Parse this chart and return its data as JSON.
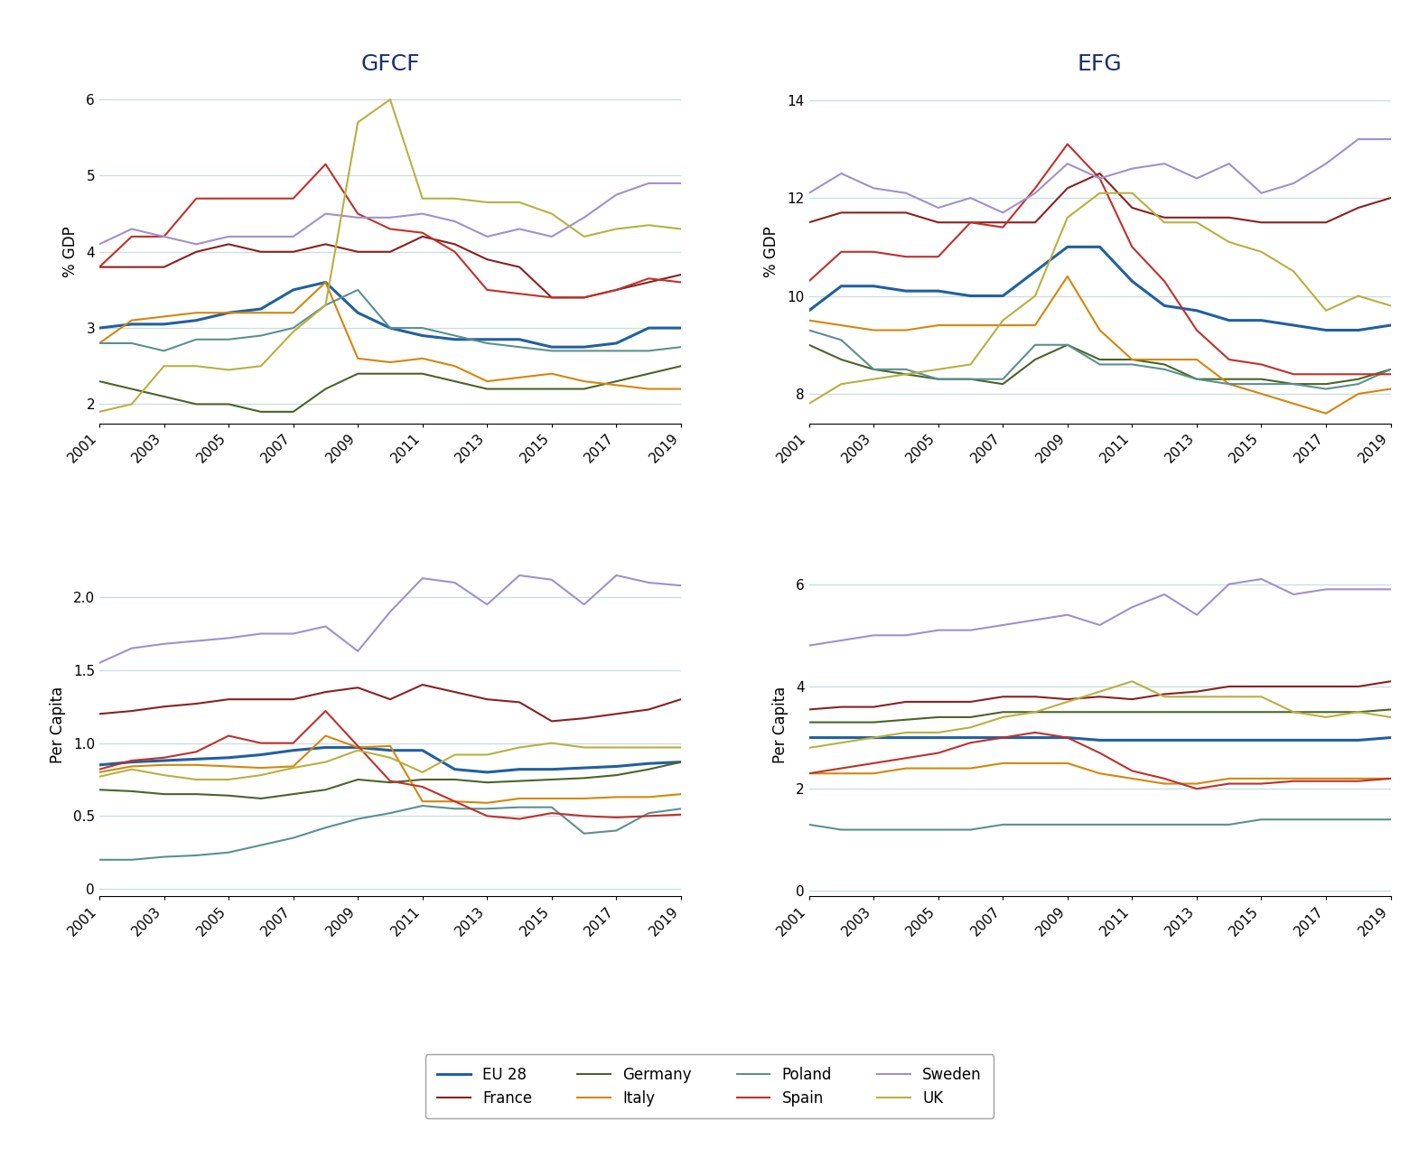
{
  "years": [
    2001,
    2002,
    2003,
    2004,
    2005,
    2006,
    2007,
    2008,
    2009,
    2010,
    2011,
    2012,
    2013,
    2014,
    2015,
    2016,
    2017,
    2018,
    2019
  ],
  "countries": [
    "EU 28",
    "France",
    "Germany",
    "Italy",
    "Poland",
    "Spain",
    "Sweden",
    "UK"
  ],
  "colors": {
    "EU 28": "#2060a0",
    "France": "#8b2020",
    "Germany": "#4a6428",
    "Italy": "#d4860a",
    "Poland": "#5b9090",
    "Spain": "#c0302a",
    "Sweden": "#a090cc",
    "UK": "#b8b040"
  },
  "linewidths": {
    "EU 28": 2.2,
    "France": 1.5,
    "Germany": 1.5,
    "Italy": 1.5,
    "Poland": 1.5,
    "Spain": 1.5,
    "Sweden": 1.5,
    "UK": 1.5
  },
  "gfcf_pct": {
    "EU 28": [
      3.0,
      3.05,
      3.05,
      3.1,
      3.2,
      3.25,
      3.5,
      3.6,
      3.2,
      3.0,
      2.9,
      2.85,
      2.85,
      2.85,
      2.75,
      2.75,
      2.8,
      3.0,
      3.0
    ],
    "France": [
      3.8,
      3.8,
      3.8,
      4.0,
      4.1,
      4.0,
      4.0,
      4.1,
      4.0,
      4.0,
      4.2,
      4.1,
      3.9,
      3.8,
      3.4,
      3.4,
      3.5,
      3.6,
      3.7
    ],
    "Germany": [
      2.3,
      2.2,
      2.1,
      2.0,
      2.0,
      1.9,
      1.9,
      2.2,
      2.4,
      2.4,
      2.4,
      2.3,
      2.2,
      2.2,
      2.2,
      2.2,
      2.3,
      2.4,
      2.5
    ],
    "Italy": [
      2.8,
      3.1,
      3.15,
      3.2,
      3.2,
      3.2,
      3.2,
      3.6,
      2.6,
      2.55,
      2.6,
      2.5,
      2.3,
      2.35,
      2.4,
      2.3,
      2.25,
      2.2,
      2.2
    ],
    "Poland": [
      2.8,
      2.8,
      2.7,
      2.85,
      2.85,
      2.9,
      3.0,
      3.3,
      3.5,
      3.0,
      3.0,
      2.9,
      2.8,
      2.75,
      2.7,
      2.7,
      2.7,
      2.7,
      2.75
    ],
    "Spain": [
      3.8,
      4.2,
      4.2,
      4.7,
      4.7,
      4.7,
      4.7,
      5.15,
      4.5,
      4.3,
      4.25,
      4.0,
      3.5,
      3.45,
      3.4,
      3.4,
      3.5,
      3.65,
      3.6
    ],
    "Sweden": [
      4.1,
      4.3,
      4.2,
      4.1,
      4.2,
      4.2,
      4.2,
      4.5,
      4.45,
      4.45,
      4.5,
      4.4,
      4.2,
      4.3,
      4.2,
      4.45,
      4.75,
      4.9,
      4.9
    ],
    "UK": [
      1.9,
      2.0,
      2.5,
      2.5,
      2.45,
      2.5,
      2.95,
      3.3,
      5.7,
      6.0,
      4.7,
      4.7,
      4.65,
      4.65,
      4.5,
      4.2,
      4.3,
      4.35,
      4.3
    ]
  },
  "efg_pct": {
    "EU 28": [
      9.7,
      10.2,
      10.2,
      10.1,
      10.1,
      10.0,
      10.0,
      10.5,
      11.0,
      11.0,
      10.3,
      9.8,
      9.7,
      9.5,
      9.5,
      9.4,
      9.3,
      9.3,
      9.4
    ],
    "France": [
      11.5,
      11.7,
      11.7,
      11.7,
      11.5,
      11.5,
      11.5,
      11.5,
      12.2,
      12.5,
      11.8,
      11.6,
      11.6,
      11.6,
      11.5,
      11.5,
      11.5,
      11.8,
      12.0
    ],
    "Germany": [
      9.0,
      8.7,
      8.5,
      8.4,
      8.3,
      8.3,
      8.2,
      8.7,
      9.0,
      8.7,
      8.7,
      8.6,
      8.3,
      8.3,
      8.3,
      8.2,
      8.2,
      8.3,
      8.5
    ],
    "Italy": [
      9.5,
      9.4,
      9.3,
      9.3,
      9.4,
      9.4,
      9.4,
      9.4,
      10.4,
      9.3,
      8.7,
      8.7,
      8.7,
      8.2,
      8.0,
      7.8,
      7.6,
      8.0,
      8.1
    ],
    "Poland": [
      9.3,
      9.1,
      8.5,
      8.5,
      8.3,
      8.3,
      8.3,
      9.0,
      9.0,
      8.6,
      8.6,
      8.5,
      8.3,
      8.2,
      8.2,
      8.2,
      8.1,
      8.2,
      8.5
    ],
    "Spain": [
      10.3,
      10.9,
      10.9,
      10.8,
      10.8,
      11.5,
      11.4,
      12.2,
      13.1,
      12.4,
      11.0,
      10.3,
      9.3,
      8.7,
      8.6,
      8.4,
      8.4,
      8.4,
      8.4
    ],
    "Sweden": [
      12.1,
      12.5,
      12.2,
      12.1,
      11.8,
      12.0,
      11.7,
      12.1,
      12.7,
      12.4,
      12.6,
      12.7,
      12.4,
      12.7,
      12.1,
      12.3,
      12.7,
      13.2,
      13.2
    ],
    "UK": [
      7.8,
      8.2,
      8.3,
      8.4,
      8.5,
      8.6,
      9.5,
      10.0,
      11.6,
      12.1,
      12.1,
      11.5,
      11.5,
      11.1,
      10.9,
      10.5,
      9.7,
      10.0,
      9.8
    ]
  },
  "gfcf_pc": {
    "EU 28": [
      0.85,
      0.87,
      0.88,
      0.89,
      0.9,
      0.92,
      0.95,
      0.97,
      0.97,
      0.95,
      0.95,
      0.82,
      0.8,
      0.82,
      0.82,
      0.83,
      0.84,
      0.86,
      0.87
    ],
    "France": [
      1.2,
      1.22,
      1.25,
      1.27,
      1.3,
      1.3,
      1.3,
      1.35,
      1.38,
      1.3,
      1.4,
      1.35,
      1.3,
      1.28,
      1.15,
      1.17,
      1.2,
      1.23,
      1.3
    ],
    "Germany": [
      0.68,
      0.67,
      0.65,
      0.65,
      0.64,
      0.62,
      0.65,
      0.68,
      0.75,
      0.73,
      0.75,
      0.75,
      0.73,
      0.74,
      0.75,
      0.76,
      0.78,
      0.82,
      0.87
    ],
    "Italy": [
      0.8,
      0.84,
      0.85,
      0.85,
      0.84,
      0.83,
      0.84,
      1.05,
      0.97,
      0.98,
      0.6,
      0.6,
      0.59,
      0.62,
      0.62,
      0.62,
      0.63,
      0.63,
      0.65
    ],
    "Poland": [
      0.2,
      0.2,
      0.22,
      0.23,
      0.25,
      0.3,
      0.35,
      0.42,
      0.48,
      0.52,
      0.57,
      0.55,
      0.55,
      0.56,
      0.56,
      0.38,
      0.4,
      0.52,
      0.55
    ],
    "Spain": [
      0.82,
      0.88,
      0.9,
      0.94,
      1.05,
      1.0,
      1.0,
      1.22,
      0.98,
      0.74,
      0.7,
      0.6,
      0.5,
      0.48,
      0.52,
      0.5,
      0.49,
      0.5,
      0.51
    ],
    "Sweden": [
      1.55,
      1.65,
      1.68,
      1.7,
      1.72,
      1.75,
      1.75,
      1.8,
      1.63,
      1.9,
      2.13,
      2.1,
      1.95,
      2.15,
      2.12,
      1.95,
      2.15,
      2.1,
      2.08
    ],
    "UK": [
      0.77,
      0.82,
      0.78,
      0.75,
      0.75,
      0.78,
      0.83,
      0.87,
      0.95,
      0.9,
      0.8,
      0.92,
      0.92,
      0.97,
      1.0,
      0.97,
      0.97,
      0.97,
      0.97
    ]
  },
  "efg_pc": {
    "EU 28": [
      3.0,
      3.0,
      3.0,
      3.0,
      3.0,
      3.0,
      3.0,
      3.0,
      3.0,
      2.95,
      2.95,
      2.95,
      2.95,
      2.95,
      2.95,
      2.95,
      2.95,
      2.95,
      3.0
    ],
    "France": [
      3.55,
      3.6,
      3.6,
      3.7,
      3.7,
      3.7,
      3.8,
      3.8,
      3.75,
      3.8,
      3.75,
      3.85,
      3.9,
      4.0,
      4.0,
      4.0,
      4.0,
      4.0,
      4.1
    ],
    "Germany": [
      3.3,
      3.3,
      3.3,
      3.35,
      3.4,
      3.4,
      3.5,
      3.5,
      3.5,
      3.5,
      3.5,
      3.5,
      3.5,
      3.5,
      3.5,
      3.5,
      3.5,
      3.5,
      3.55
    ],
    "Italy": [
      2.3,
      2.3,
      2.3,
      2.4,
      2.4,
      2.4,
      2.5,
      2.5,
      2.5,
      2.3,
      2.2,
      2.1,
      2.1,
      2.2,
      2.2,
      2.2,
      2.2,
      2.2,
      2.2
    ],
    "Poland": [
      1.3,
      1.2,
      1.2,
      1.2,
      1.2,
      1.2,
      1.3,
      1.3,
      1.3,
      1.3,
      1.3,
      1.3,
      1.3,
      1.3,
      1.4,
      1.4,
      1.4,
      1.4,
      1.4
    ],
    "Spain": [
      2.3,
      2.4,
      2.5,
      2.6,
      2.7,
      2.9,
      3.0,
      3.1,
      3.0,
      2.7,
      2.35,
      2.2,
      2.0,
      2.1,
      2.1,
      2.15,
      2.15,
      2.15,
      2.2
    ],
    "Sweden": [
      4.8,
      4.9,
      5.0,
      5.0,
      5.1,
      5.1,
      5.2,
      5.3,
      5.4,
      5.2,
      5.55,
      5.8,
      5.4,
      6.0,
      6.1,
      5.8,
      5.9,
      5.9,
      5.9
    ],
    "UK": [
      2.8,
      2.9,
      3.0,
      3.1,
      3.1,
      3.2,
      3.4,
      3.5,
      3.7,
      3.9,
      4.1,
      3.8,
      3.8,
      3.8,
      3.8,
      3.5,
      3.4,
      3.5,
      3.4
    ]
  },
  "titles": {
    "top_left": "GFCF",
    "top_right": "EFG"
  },
  "ylabels": {
    "pct": "% GDP",
    "pc": "Per Capita"
  },
  "gfcf_pct_yticks": [
    2,
    3,
    4,
    5,
    6
  ],
  "efg_pct_yticks": [
    8,
    10,
    12,
    14
  ],
  "gfcf_pc_yticks": [
    0,
    0.5,
    1.0,
    1.5,
    2.0
  ],
  "efg_pc_yticks": [
    0,
    2,
    4,
    6
  ],
  "gfcf_pct_ylim": [
    1.75,
    6.25
  ],
  "efg_pct_ylim": [
    7.4,
    14.4
  ],
  "gfcf_pc_ylim": [
    -0.05,
    2.3
  ],
  "efg_pc_ylim": [
    -0.1,
    6.6
  ],
  "legend_order": [
    "EU 28",
    "France",
    "Germany",
    "Italy",
    "Poland",
    "Spain",
    "Sweden",
    "UK"
  ],
  "background_color": "#ffffff",
  "grid_color": "#c8dde0",
  "title_color": "#1a2f6e",
  "title_fontsize": 18,
  "axis_fontsize": 12,
  "tick_fontsize": 11
}
